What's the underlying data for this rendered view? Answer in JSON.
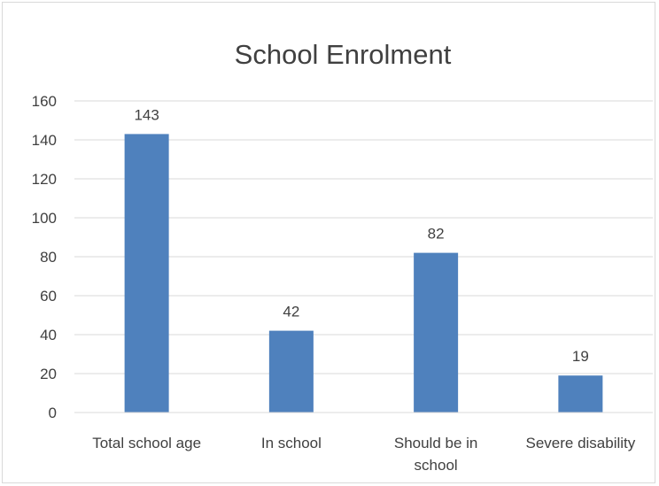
{
  "chart_data": {
    "type": "bar",
    "title": "School Enrolment",
    "categories": [
      [
        "Total school age"
      ],
      [
        "In school"
      ],
      [
        "Should be in",
        "school"
      ],
      [
        "Severe disability"
      ]
    ],
    "values": [
      143,
      42,
      82,
      19
    ],
    "data_labels": [
      "143",
      "42",
      "82",
      "19"
    ],
    "xlabel": "",
    "ylabel": "",
    "ylim": [
      0,
      160
    ],
    "yticks": [
      0,
      20,
      40,
      60,
      80,
      100,
      120,
      140,
      160
    ],
    "ytick_labels": [
      "0",
      "20",
      "40",
      "60",
      "80",
      "100",
      "120",
      "140",
      "160"
    ],
    "grid": "horizontal",
    "legend": "none",
    "bar_color": "#4f81bd",
    "text_color": "#404040",
    "gridline_color": "#d9d9d9"
  }
}
